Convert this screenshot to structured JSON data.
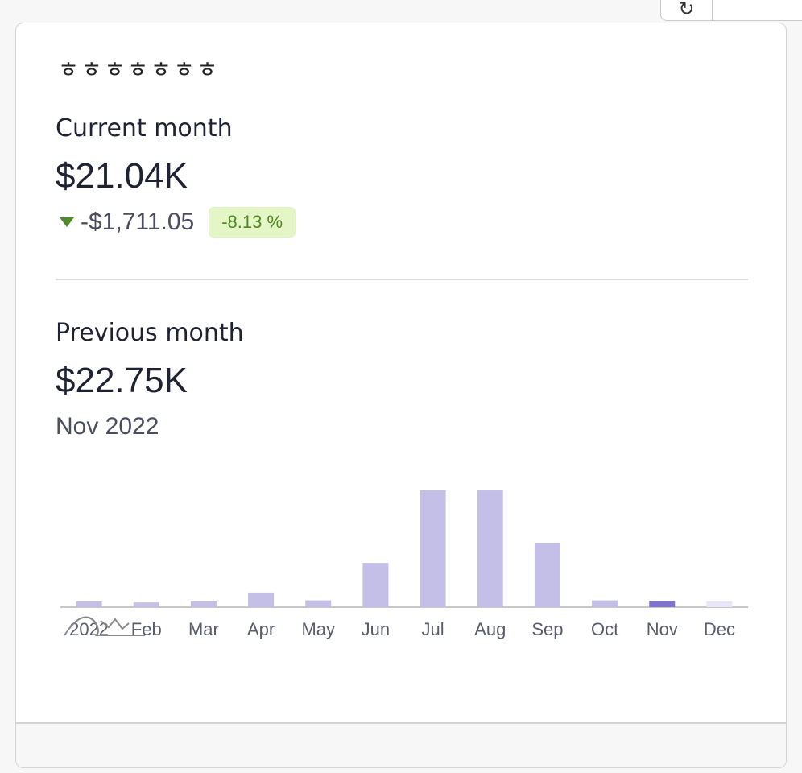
{
  "card": {
    "title": "ㅎㅎㅎㅎㅎㅎㅎ",
    "current": {
      "label": "Current month",
      "value": "$21.04K",
      "change_amount": "-$1,711.05",
      "change_percent": "-8.13 %"
    },
    "previous": {
      "label": "Previous month",
      "value": "$22.75K",
      "period": "Nov 2022"
    }
  },
  "colors": {
    "bar": "#c4bfe6",
    "bar_highlight": "#7f72cc",
    "bar_future": "#e8e6f6",
    "baseline": "#c8c8c8",
    "positive_badge_bg": "#e4f5c6",
    "positive_badge_text": "#4d8a1f"
  },
  "chart_data": {
    "type": "bar",
    "categories": [
      "2022",
      "Feb",
      "Mar",
      "Apr",
      "May",
      "Jun",
      "Jul",
      "Aug",
      "Sep",
      "Oct",
      "Nov",
      "Dec"
    ],
    "values": [
      1.1,
      0.9,
      1.1,
      2.8,
      1.3,
      8.5,
      22.5,
      22.6,
      12.4,
      1.3,
      1.2,
      1.1
    ],
    "highlight_index": 10,
    "future_index": 11,
    "ylim": [
      0,
      24
    ]
  }
}
